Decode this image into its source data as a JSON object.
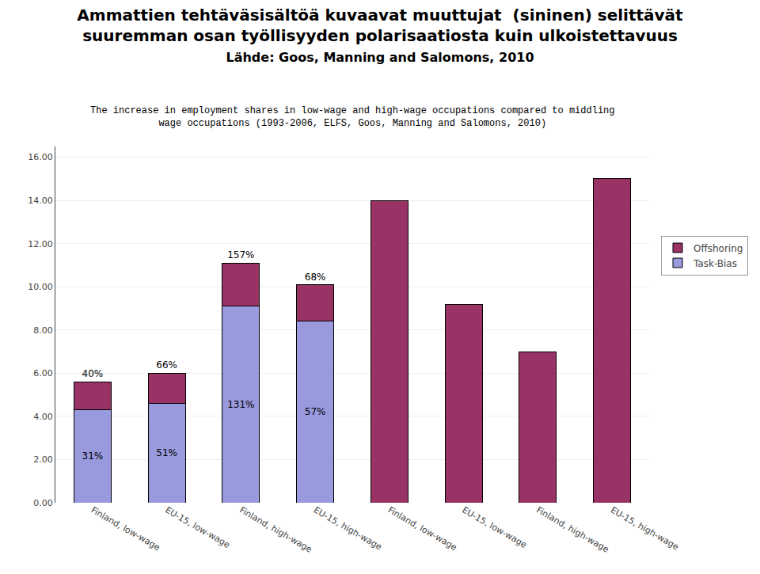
{
  "chart_data": {
    "type": "bar",
    "stacked": true,
    "title": "Ammattien tehtäväsisältöä kuvaavat muuttujat  (sininen) selittävät\nsuuremman osan työllisyyden polarisaatiosta kuin ulkoistettavuus\nLähde: Goos, Manning and Salomons, 2010",
    "subtitle": "The increase in employment shares in low-wage and high-wage occupations compared to middling\nwage occupations (1993-2006, ELFS, Goos, Manning and Salomons, 2010)",
    "categories": [
      "Finland, low-wage",
      "EU-15, low-wage",
      "Finland, high-wage",
      "EU-15, high-wage",
      "Finland, low-wage",
      "EU-15, low-wage",
      "Finland, high-wage",
      "EU-15, high-wage"
    ],
    "series": [
      {
        "name": "Task-Bias",
        "color": "#9999dd",
        "values": [
          4.3,
          4.6,
          9.1,
          8.4,
          0.0,
          0.0,
          0.0,
          0.0
        ],
        "labels": [
          "31%",
          "51%",
          "131%",
          "57%",
          null,
          null,
          null,
          null
        ]
      },
      {
        "name": "Offshoring",
        "color": "#993366",
        "values": [
          1.3,
          1.4,
          2.0,
          1.7,
          14.0,
          9.2,
          7.0,
          15.0
        ],
        "labels": [
          "40%",
          "66%",
          "157%",
          "68%",
          null,
          null,
          null,
          null
        ]
      }
    ],
    "ylim": [
      0,
      16.5
    ],
    "yticks": [
      {
        "value": 0.0,
        "label": "0.00"
      },
      {
        "value": 2.0,
        "label": "2.00"
      },
      {
        "value": 4.0,
        "label": "4.00"
      },
      {
        "value": 6.0,
        "label": "6.00"
      },
      {
        "value": 8.0,
        "label": "8.00"
      },
      {
        "value": 10.0,
        "label": "10.00"
      },
      {
        "value": 12.0,
        "label": "12.00"
      },
      {
        "value": 14.0,
        "label": "14.00"
      },
      {
        "value": 16.0,
        "label": "16.00"
      }
    ],
    "grid": true,
    "legend": "right"
  }
}
